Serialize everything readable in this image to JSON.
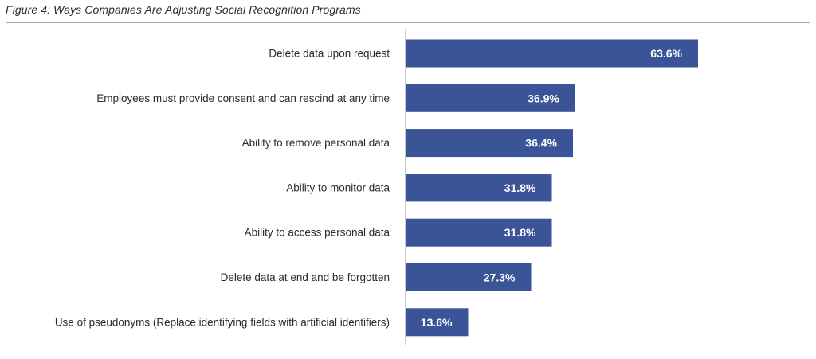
{
  "caption": "Figure 4: Ways Companies Are Adjusting Social Recognition Programs",
  "colors": {
    "bar": "#3a5497",
    "axis": "#9a9a9a",
    "frame": "#a8a8a8"
  },
  "chart_data": {
    "type": "bar",
    "orientation": "horizontal",
    "title": "",
    "xlabel": "",
    "ylabel": "",
    "xlim": [
      0,
      100
    ],
    "grid": false,
    "categories": [
      "Delete data upon request",
      "Employees must provide consent and can rescind at any time",
      "Ability to remove personal data",
      "Ability to monitor data",
      "Ability to access personal data",
      "Delete data at end and be forgotten",
      "Use of pseudonyms (Replace identifying fields with artificial identifiers)"
    ],
    "values": [
      63.6,
      36.9,
      36.4,
      31.8,
      31.8,
      27.3,
      13.6
    ],
    "value_labels": [
      "63.6%",
      "36.9%",
      "36.4%",
      "31.8%",
      "31.8%",
      "27.3%",
      "13.6%"
    ]
  }
}
